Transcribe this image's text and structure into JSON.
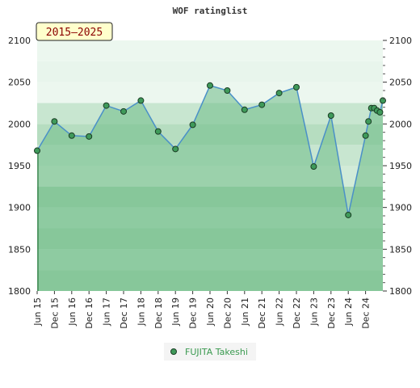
{
  "chart_data": {
    "type": "area",
    "title": "WOF ratinglist",
    "period_label": "2015–2025",
    "xlabel": "",
    "ylabel": "",
    "ylim": [
      1800,
      2100
    ],
    "yticks": [
      1800,
      1850,
      1900,
      1950,
      2000,
      2050,
      2100
    ],
    "xlim": [
      "2015-06",
      "2025-06"
    ],
    "xticks": [
      {
        "x": "2015-06",
        "label": "Jun 15"
      },
      {
        "x": "2015-12",
        "label": "Dec 15"
      },
      {
        "x": "2016-06",
        "label": "Jun 16"
      },
      {
        "x": "2016-12",
        "label": "Dec 16"
      },
      {
        "x": "2017-06",
        "label": "Jun 17"
      },
      {
        "x": "2017-12",
        "label": "Dec 17"
      },
      {
        "x": "2018-06",
        "label": "Jun 18"
      },
      {
        "x": "2018-12",
        "label": "Dec 18"
      },
      {
        "x": "2019-06",
        "label": "Jun 19"
      },
      {
        "x": "2019-12",
        "label": "Dec 19"
      },
      {
        "x": "2020-06",
        "label": "Jun 20"
      },
      {
        "x": "2020-12",
        "label": "Dec 20"
      },
      {
        "x": "2021-06",
        "label": "Jun 21"
      },
      {
        "x": "2021-12",
        "label": "Dec 21"
      },
      {
        "x": "2022-06",
        "label": "Jun 22"
      },
      {
        "x": "2022-12",
        "label": "Dec 22"
      },
      {
        "x": "2023-06",
        "label": "Jun 23"
      },
      {
        "x": "2023-12",
        "label": "Dec 23"
      },
      {
        "x": "2024-06",
        "label": "Jun 24"
      },
      {
        "x": "2024-12",
        "label": "Dec 24"
      }
    ],
    "series": [
      {
        "name": "FUJITA Takeshi",
        "points": [
          {
            "x": "2015-06",
            "y": 1968
          },
          {
            "x": "2015-12",
            "y": 2003
          },
          {
            "x": "2016-06",
            "y": 1986
          },
          {
            "x": "2016-12",
            "y": 1985
          },
          {
            "x": "2017-06",
            "y": 2022
          },
          {
            "x": "2017-12",
            "y": 2015
          },
          {
            "x": "2018-06",
            "y": 2028
          },
          {
            "x": "2018-12",
            "y": 1991
          },
          {
            "x": "2019-06",
            "y": 1970
          },
          {
            "x": "2019-12",
            "y": 1999
          },
          {
            "x": "2020-06",
            "y": 2046
          },
          {
            "x": "2020-12",
            "y": 2040
          },
          {
            "x": "2021-06",
            "y": 2017
          },
          {
            "x": "2021-12",
            "y": 2023
          },
          {
            "x": "2022-06",
            "y": 2037
          },
          {
            "x": "2022-12",
            "y": 2044
          },
          {
            "x": "2023-06",
            "y": 1949
          },
          {
            "x": "2023-12",
            "y": 2010
          },
          {
            "x": "2024-06",
            "y": 1891
          },
          {
            "x": "2024-12",
            "y": 1986
          },
          {
            "x": "2025-01",
            "y": 2003
          },
          {
            "x": "2025-02",
            "y": 2019
          },
          {
            "x": "2025-03",
            "y": 2019
          },
          {
            "x": "2025-04",
            "y": 2016
          },
          {
            "x": "2025-05",
            "y": 2014
          },
          {
            "x": "2025-06",
            "y": 2028
          }
        ]
      }
    ],
    "legend": "bottom",
    "grid": true,
    "colors": {
      "line": "#4a90c8",
      "area": "#6dbb86",
      "marker_fill": "#3f9a5a",
      "marker_stroke": "#1b3d25",
      "legend_text": "#3a9a50",
      "period_box_fill": "#ffffcc",
      "band_top": "#e8f5ec",
      "band_light": "#c8e6d0",
      "band_mid": "#a6d6b2",
      "band_dark": "#7dc393"
    }
  }
}
